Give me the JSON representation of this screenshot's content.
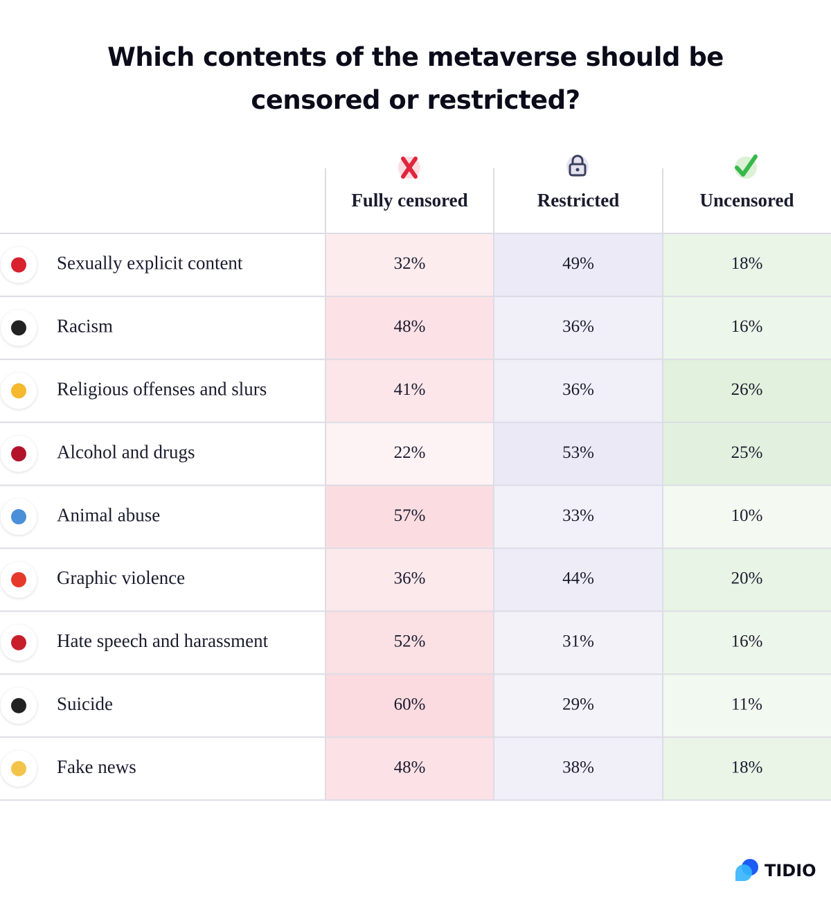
{
  "title": "Which contents of the metaverse should be censored or restricted?",
  "columns": [
    "Fully censored",
    "Restricted",
    "Uncensored"
  ],
  "rows": [
    {
      "label": "Sexually explicit content",
      "values": [
        "32%",
        "49%",
        "18%"
      ]
    },
    {
      "label": "Racism",
      "values": [
        "48%",
        "36%",
        "16%"
      ]
    },
    {
      "label": "Religious offenses and slurs",
      "values": [
        "41%",
        "36%",
        "26%"
      ]
    },
    {
      "label": "Alcohol and drugs",
      "values": [
        "22%",
        "53%",
        "25%"
      ]
    },
    {
      "label": "Animal abuse",
      "values": [
        "57%",
        "33%",
        "10%"
      ]
    },
    {
      "label": "Graphic violence",
      "values": [
        "36%",
        "44%",
        "20%"
      ]
    },
    {
      "label": "Hate speech and harassment",
      "values": [
        "52%",
        "31%",
        "16%"
      ]
    },
    {
      "label": "Suicide",
      "values": [
        "60%",
        "29%",
        "11%"
      ]
    },
    {
      "label": "Fake news",
      "values": [
        "48%",
        "38%",
        "18%"
      ]
    }
  ],
  "logo": "TIDIO"
}
